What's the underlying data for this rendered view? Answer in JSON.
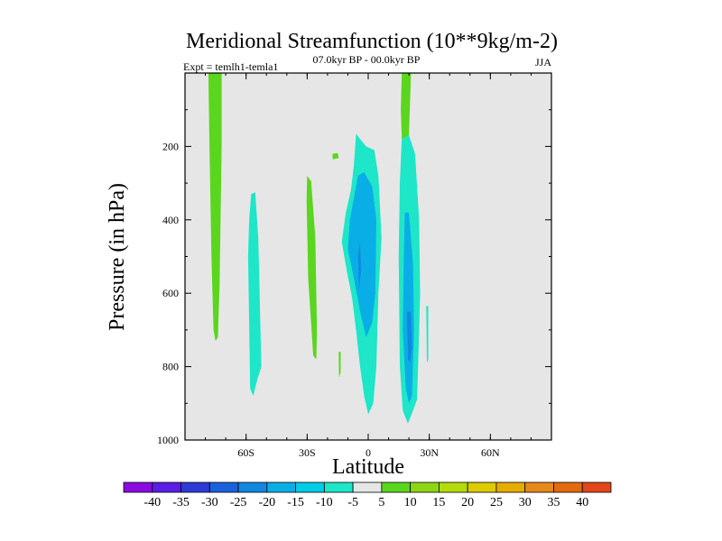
{
  "chart_data": {
    "type": "contour",
    "title": "Meridional Streamfunction (10**9kg/m-2)",
    "left_string": "Expt = temlh1-temla1",
    "center_string": "07.0kyr BP - 00.0kyr BP",
    "right_string": "JJA",
    "xlabel": "Latitude",
    "ylabel": "Pressure (in hPa)",
    "xlim": [
      -90,
      90
    ],
    "ylim": [
      1000,
      0
    ],
    "x_ticks": [
      {
        "value": -60,
        "label": "60S"
      },
      {
        "value": -30,
        "label": "30S"
      },
      {
        "value": 0,
        "label": "0"
      },
      {
        "value": 30,
        "label": "30N"
      },
      {
        "value": 60,
        "label": "60N"
      }
    ],
    "y_ticks": [
      {
        "value": 200,
        "label": "200"
      },
      {
        "value": 400,
        "label": "400"
      },
      {
        "value": 600,
        "label": "600"
      },
      {
        "value": 800,
        "label": "800"
      },
      {
        "value": 1000,
        "label": "1000"
      }
    ],
    "background_level_color": "#e6e6e6",
    "contour_levels": [
      -40,
      -35,
      -30,
      -25,
      -20,
      -15,
      -10,
      -5,
      5,
      10,
      15,
      20,
      25,
      30,
      35,
      40
    ],
    "colorbar_colors": [
      "#8a0be0",
      "#5a1ee6",
      "#2d3ad6",
      "#1a62dc",
      "#1088e0",
      "#0aaee6",
      "#00cce6",
      "#1ee6c8",
      "#e6e6e6",
      "#5ad61e",
      "#8cd614",
      "#b4dc0a",
      "#dccc00",
      "#e6ac00",
      "#e6881a",
      "#e46a10",
      "#e2461a"
    ],
    "regions": [
      {
        "name": "region-pos-80s",
        "value": 5,
        "color": "#5ad61e",
        "outline": [
          [
            -78.5,
            0
          ],
          [
            -72,
            0
          ],
          [
            -72,
            200
          ],
          [
            -73,
            580
          ],
          [
            -73.5,
            660
          ],
          [
            -73.8,
            720
          ],
          [
            -75,
            730
          ],
          [
            -76,
            700
          ],
          [
            -77,
            500
          ],
          [
            -78,
            200
          ]
        ]
      },
      {
        "name": "region-neg-60s",
        "value": -5,
        "color": "#1ee6c8",
        "outline": [
          [
            -57.5,
            330
          ],
          [
            -55.5,
            325
          ],
          [
            -54,
            450
          ],
          [
            -52.5,
            800
          ],
          [
            -54.5,
            835
          ],
          [
            -56.5,
            880
          ],
          [
            -58,
            860
          ],
          [
            -59,
            500
          ],
          [
            -58.5,
            400
          ]
        ]
      },
      {
        "name": "region-pos-30s",
        "value": 5,
        "color": "#5ad61e",
        "outline": [
          [
            -30,
            280
          ],
          [
            -28,
            295
          ],
          [
            -26,
            450
          ],
          [
            -25.2,
            700
          ],
          [
            -25.5,
            780
          ],
          [
            -27,
            770
          ],
          [
            -29.5,
            560
          ],
          [
            -30.3,
            350
          ]
        ]
      },
      {
        "name": "region-pos-small-16s-blob",
        "value": 5,
        "color": "#5ad61e",
        "outline": [
          [
            -17.5,
            220
          ],
          [
            -15,
            218
          ],
          [
            -14.5,
            232
          ],
          [
            -17.5,
            235
          ]
        ]
      },
      {
        "name": "region-pos-small-14s-sliver",
        "value": 5,
        "color": "#5ad61e",
        "outline": [
          [
            -14.5,
            760
          ],
          [
            -13.5,
            760
          ],
          [
            -13.5,
            815
          ],
          [
            -14.3,
            830
          ]
        ]
      },
      {
        "name": "region-neg-equator",
        "value": -5,
        "color": "#1ee6c8",
        "outline": [
          [
            -6,
            165
          ],
          [
            -4,
            180
          ],
          [
            -1,
            200
          ],
          [
            3,
            210
          ],
          [
            5,
            280
          ],
          [
            6.5,
            450
          ],
          [
            5,
            600
          ],
          [
            4,
            800
          ],
          [
            2.5,
            900
          ],
          [
            0,
            930
          ],
          [
            -2,
            880
          ],
          [
            -4,
            800
          ],
          [
            -6,
            700
          ],
          [
            -8,
            610
          ],
          [
            -10.5,
            540
          ],
          [
            -13,
            460
          ],
          [
            -11,
            380
          ],
          [
            -8.5,
            320
          ],
          [
            -7,
            250
          ]
        ]
      },
      {
        "name": "region-neg-equator-core",
        "value": -10,
        "color": "#0aaee6",
        "outline": [
          [
            -5,
            280
          ],
          [
            -2,
            270
          ],
          [
            2,
            310
          ],
          [
            4,
            400
          ],
          [
            3.5,
            600
          ],
          [
            2,
            680
          ],
          [
            -1,
            720
          ],
          [
            -4,
            650
          ],
          [
            -7,
            560
          ],
          [
            -10,
            480
          ],
          [
            -9,
            400
          ],
          [
            -7,
            340
          ]
        ]
      },
      {
        "name": "region-neg-equator-max",
        "value": -15,
        "color": "#1088e0",
        "outline": [
          [
            -5,
            500
          ],
          [
            -4,
            460
          ],
          [
            -3.5,
            540
          ],
          [
            -4.5,
            590
          ]
        ]
      },
      {
        "name": "region-pos-18n",
        "value": 5,
        "color": "#5ad61e",
        "outline": [
          [
            16.5,
            0
          ],
          [
            21,
            0
          ],
          [
            20,
            170
          ],
          [
            16.5,
            180
          ],
          [
            16,
            100
          ]
        ]
      },
      {
        "name": "region-neg-20n",
        "value": -5,
        "color": "#1ee6c8",
        "outline": [
          [
            16.5,
            180
          ],
          [
            20,
            170
          ],
          [
            23,
            220
          ],
          [
            25,
            400
          ],
          [
            25.5,
            600
          ],
          [
            24.5,
            800
          ],
          [
            24,
            890
          ],
          [
            22,
            920
          ],
          [
            19.5,
            955
          ],
          [
            17,
            920
          ],
          [
            15.5,
            800
          ],
          [
            15,
            500
          ],
          [
            15.5,
            300
          ]
        ]
      },
      {
        "name": "region-neg-20n-core",
        "value": -10,
        "color": "#0aaee6",
        "outline": [
          [
            18,
            380
          ],
          [
            20,
            380
          ],
          [
            22,
            520
          ],
          [
            22.5,
            700
          ],
          [
            21.5,
            880
          ],
          [
            20,
            900
          ],
          [
            18.5,
            860
          ],
          [
            17,
            700
          ],
          [
            17.5,
            500
          ]
        ]
      },
      {
        "name": "region-neg-20n-max",
        "value": -15,
        "color": "#1088e0",
        "outline": [
          [
            19,
            650
          ],
          [
            21,
            650
          ],
          [
            21.5,
            750
          ],
          [
            20.5,
            790
          ],
          [
            19.5,
            780
          ]
        ]
      },
      {
        "name": "region-neg-29n-sliver",
        "value": -5,
        "color": "#1ee6c8",
        "outline": [
          [
            28.5,
            635
          ],
          [
            29.5,
            635
          ],
          [
            29.5,
            780
          ],
          [
            28.8,
            790
          ]
        ]
      }
    ]
  }
}
